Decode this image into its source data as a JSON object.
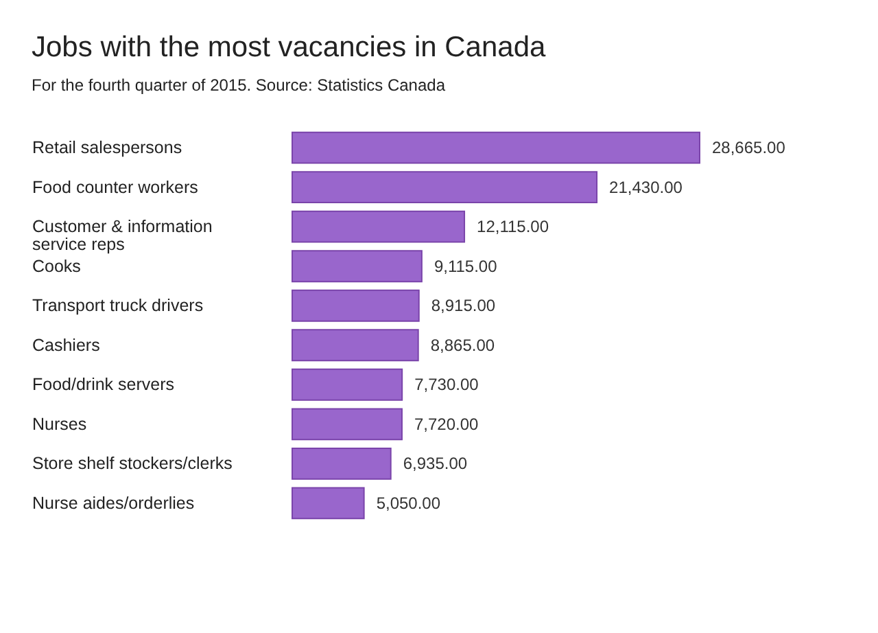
{
  "chart_data": {
    "type": "bar",
    "orientation": "horizontal",
    "title": "Jobs with the most vacancies in Canada",
    "subtitle": "For the fourth quarter of 2015. Source: Statistics Canada",
    "categories": [
      "Retail salespersons",
      "Food counter workers",
      "Customer & information service reps",
      "Cooks",
      "Transport truck drivers",
      "Cashiers",
      "Food/drink servers",
      "Nurses",
      "Store shelf stockers/clerks",
      "Nurse aides/orderlies"
    ],
    "values": [
      28665,
      21430,
      12115,
      9115,
      8915,
      8865,
      7730,
      7720,
      6935,
      5050
    ],
    "value_labels": [
      "28,665.00",
      "21,430.00",
      "12,115.00",
      "9,115.00",
      "8,915.00",
      "8,865.00",
      "7,730.00",
      "7,720.00",
      "6,935.00",
      "5,050.00"
    ],
    "color": "#9966cc"
  }
}
